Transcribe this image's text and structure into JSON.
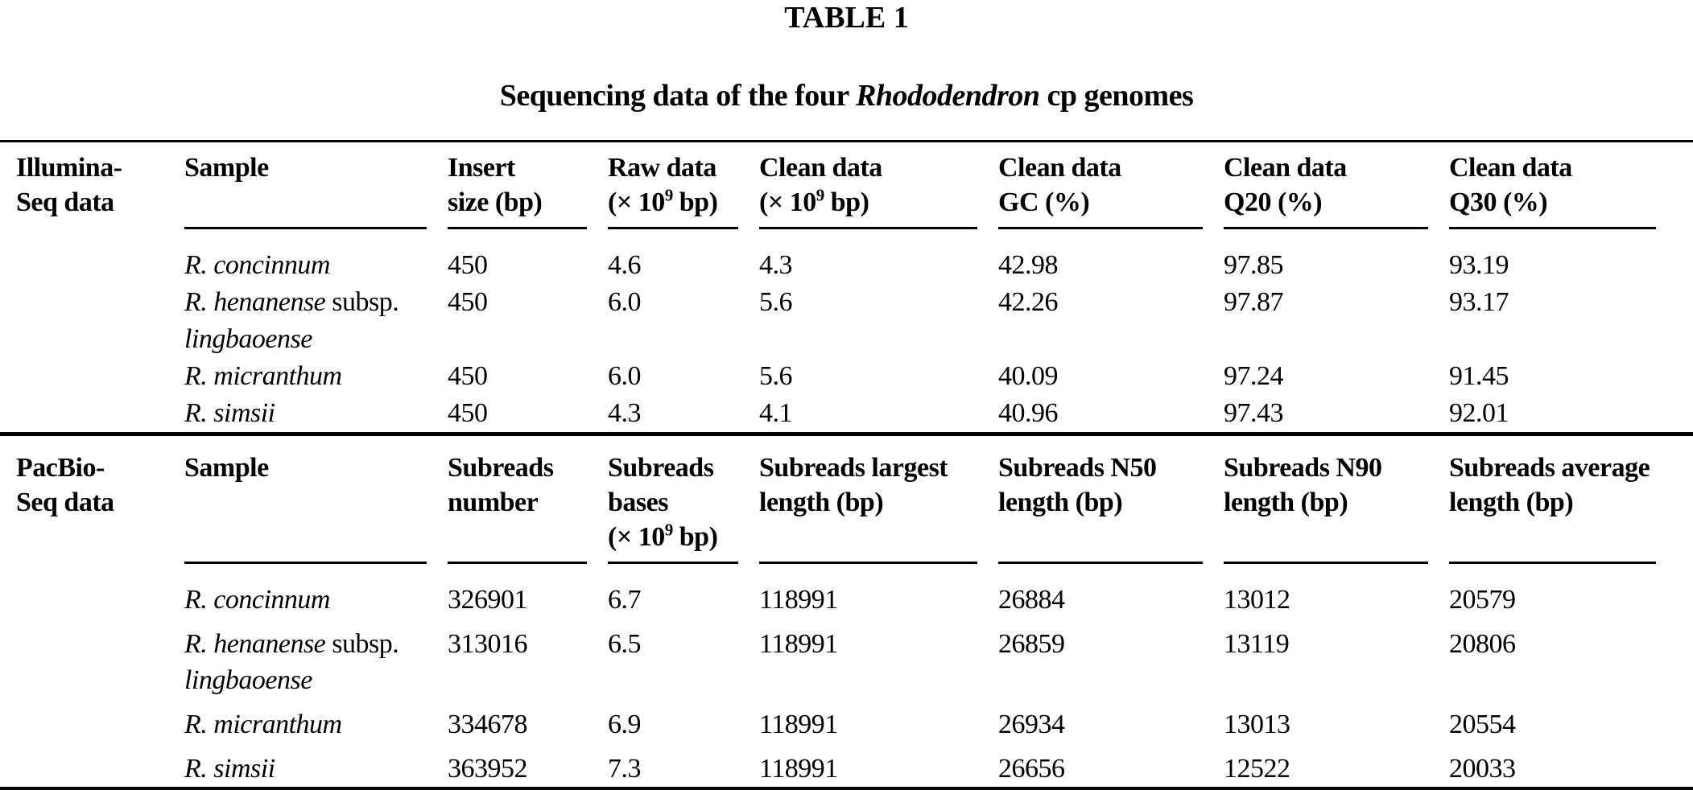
{
  "styles": {
    "background": "#ffffff",
    "text_color": "#000000",
    "rule_color": "#000000"
  },
  "title": "TABLE 1",
  "caption_segments": [
    {
      "t": "Sequencing data of the four "
    },
    {
      "t": "Rhododendron",
      "i": true
    },
    {
      "t": " cp genomes"
    }
  ],
  "table": {
    "sections": [
      {
        "id": "illumina",
        "group_label_segments": [
          {
            "t": "Illumina-"
          },
          {
            "br": true
          },
          {
            "t": "Seq data"
          }
        ],
        "columns": [
          {
            "name": "sample",
            "segments": [
              {
                "t": "Sample"
              }
            ]
          },
          {
            "name": "insert-size",
            "segments": [
              {
                "t": "Insert"
              },
              {
                "br": true
              },
              {
                "t": "size (bp)"
              }
            ]
          },
          {
            "name": "raw-data",
            "segments": [
              {
                "t": "Raw data"
              },
              {
                "br": true
              },
              {
                "t": "(× 10"
              },
              {
                "t": "9",
                "sup": true
              },
              {
                "t": " bp)"
              }
            ]
          },
          {
            "name": "clean-data",
            "segments": [
              {
                "t": "Clean data"
              },
              {
                "br": true
              },
              {
                "t": "(× 10"
              },
              {
                "t": "9",
                "sup": true
              },
              {
                "t": " bp)"
              }
            ]
          },
          {
            "name": "clean-data-gc",
            "segments": [
              {
                "t": "Clean data"
              },
              {
                "br": true
              },
              {
                "t": "GC (%)"
              }
            ]
          },
          {
            "name": "clean-data-q20",
            "segments": [
              {
                "t": "Clean data"
              },
              {
                "br": true
              },
              {
                "t": "Q20 (%)"
              }
            ]
          },
          {
            "name": "clean-data-q30",
            "segments": [
              {
                "t": "Clean data"
              },
              {
                "br": true
              },
              {
                "t": "Q30 (%)"
              }
            ]
          }
        ],
        "rows": [
          {
            "sample_segments": [
              {
                "t": "R. concinnum",
                "i": true
              }
            ],
            "values": [
              "450",
              "4.6",
              "4.3",
              "42.98",
              "97.85",
              "93.19"
            ]
          },
          {
            "sample_segments": [
              {
                "t": "R. henanense",
                "i": true
              },
              {
                "t": " subsp."
              },
              {
                "br": true
              },
              {
                "t": "lingbaoense",
                "i": true
              }
            ],
            "values": [
              "450",
              "6.0",
              "5.6",
              "42.26",
              "97.87",
              "93.17"
            ]
          },
          {
            "sample_segments": [
              {
                "t": "R. micranthum",
                "i": true
              }
            ],
            "values": [
              "450",
              "6.0",
              "5.6",
              "40.09",
              "97.24",
              "91.45"
            ]
          },
          {
            "sample_segments": [
              {
                "t": "R. simsii",
                "i": true
              }
            ],
            "values": [
              "450",
              "4.3",
              "4.1",
              "40.96",
              "97.43",
              "92.01"
            ]
          }
        ]
      },
      {
        "id": "pacbio",
        "group_label_segments": [
          {
            "t": "PacBio-"
          },
          {
            "br": true
          },
          {
            "t": "Seq data"
          }
        ],
        "columns": [
          {
            "name": "sample",
            "segments": [
              {
                "t": "Sample"
              }
            ]
          },
          {
            "name": "subreads-number",
            "segments": [
              {
                "t": "Subreads"
              },
              {
                "br": true
              },
              {
                "t": "number"
              }
            ]
          },
          {
            "name": "subreads-bases",
            "segments": [
              {
                "t": "Subreads"
              },
              {
                "br": true
              },
              {
                "t": "bases"
              },
              {
                "br": true
              },
              {
                "t": "(× 10"
              },
              {
                "t": "9",
                "sup": true
              },
              {
                "t": " bp)"
              }
            ]
          },
          {
            "name": "subreads-largest-length",
            "segments": [
              {
                "t": "Subreads largest"
              },
              {
                "br": true
              },
              {
                "t": "length (bp)"
              }
            ]
          },
          {
            "name": "subreads-n50-length",
            "segments": [
              {
                "t": "Subreads N50"
              },
              {
                "br": true
              },
              {
                "t": "length (bp)"
              }
            ]
          },
          {
            "name": "subreads-n90-length",
            "segments": [
              {
                "t": "Subreads N90"
              },
              {
                "br": true
              },
              {
                "t": "length (bp)"
              }
            ]
          },
          {
            "name": "subreads-average-length",
            "segments": [
              {
                "t": "Subreads average"
              },
              {
                "br": true
              },
              {
                "t": "length (bp)"
              }
            ]
          }
        ],
        "rows": [
          {
            "sample_segments": [
              {
                "t": "R. concinnum",
                "i": true
              }
            ],
            "values": [
              "326901",
              "6.7",
              "118991",
              "26884",
              "13012",
              "20579"
            ]
          },
          {
            "sample_segments": [
              {
                "t": "R. henanense",
                "i": true
              },
              {
                "t": " subsp."
              },
              {
                "br": true
              },
              {
                "t": "lingbaoense",
                "i": true
              }
            ],
            "values": [
              "313016",
              "6.5",
              "118991",
              "26859",
              "13119",
              "20806"
            ]
          },
          {
            "sample_segments": [
              {
                "t": "R. micranthum",
                "i": true
              }
            ],
            "values": [
              "334678",
              "6.9",
              "118991",
              "26934",
              "13013",
              "20554"
            ]
          },
          {
            "sample_segments": [
              {
                "t": "R. simsii",
                "i": true
              }
            ],
            "values": [
              "363952",
              "7.3",
              "118991",
              "26656",
              "12522",
              "20033"
            ]
          }
        ]
      }
    ]
  }
}
